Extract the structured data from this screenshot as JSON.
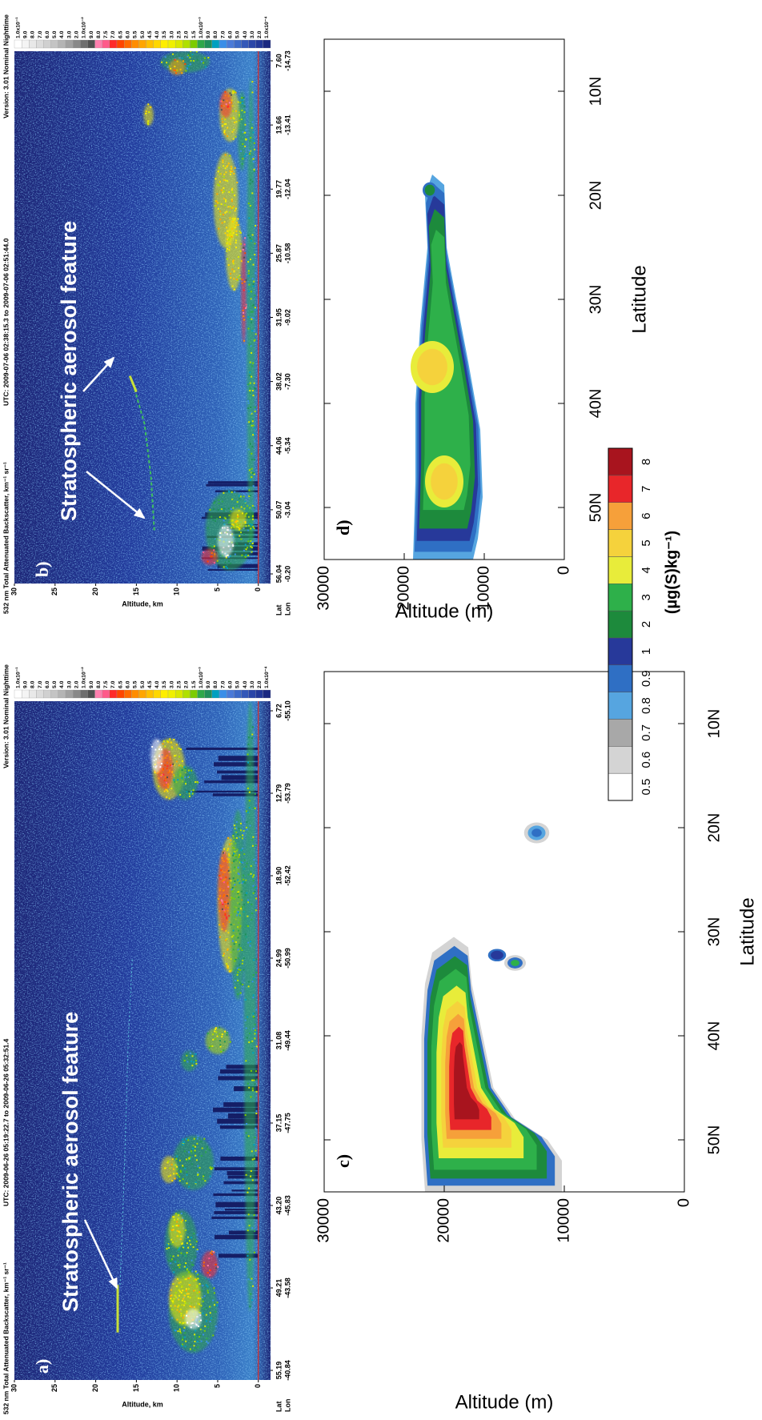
{
  "panels": [
    {
      "label": "a)",
      "header": "532 nm Total Attenuated Backscatter, km⁻¹ sr⁻¹",
      "utc": "UTC:  2009-06-26 05:19:22.7  to  2009-06-26 05:32:51.4",
      "version": "Version: 3.01  Nominal  Nighttime",
      "y_label": "Altitude, km",
      "ylim": [
        -1.5,
        30
      ],
      "yticks": [
        0,
        5,
        10,
        15,
        20,
        25,
        30
      ],
      "row_labels": [
        "Lat",
        "Lon"
      ],
      "lat": [
        "55.19",
        "49.21",
        "43.20",
        "37.15",
        "31.08",
        "24.99",
        "18.90",
        "12.79",
        "6.72"
      ],
      "lon": [
        "-40.84",
        "-43.58",
        "-45.83",
        "-47.75",
        "-49.44",
        "-50.99",
        "-52.42",
        "-53.79",
        "-55.10"
      ],
      "annotation": "Stratospheric aerosol feature"
    },
    {
      "label": "b)",
      "header": "532 nm Total Attenuated Backscatter, km⁻¹ sr⁻¹",
      "utc": "UTC:  2009-07-06 02:38:15.3  to  2009-07-06 02:51:44.0",
      "version": "Version: 3.01  Nominal  Nighttime",
      "y_label": "Altitude, km",
      "ylim": [
        -1.5,
        30
      ],
      "yticks": [
        0,
        5,
        10,
        15,
        20,
        25,
        30
      ],
      "row_labels": [
        "Lat",
        "Lon"
      ],
      "lat": [
        "56.04",
        "50.07",
        "44.06",
        "38.02",
        "31.95",
        "25.87",
        "19.77",
        "13.66",
        "7.60"
      ],
      "lon": [
        "-0.20",
        "-3.04",
        "-5.34",
        "-7.30",
        "-9.02",
        "-10.58",
        "-12.04",
        "-13.41",
        "-14.73"
      ],
      "annotation": "Stratospheric aerosol feature"
    },
    {
      "label": "c)",
      "y_label": "Altitude (m)",
      "x_label": "Latitude",
      "ylim": [
        0,
        30000
      ],
      "yticks": [
        0,
        10000,
        20000,
        30000
      ],
      "xlim": [
        55,
        5
      ],
      "xticks": [
        {
          "value": 50,
          "label": "50N"
        },
        {
          "value": 40,
          "label": "40N"
        },
        {
          "value": 30,
          "label": "30N"
        },
        {
          "value": 20,
          "label": "20N"
        },
        {
          "value": 10,
          "label": "10N"
        }
      ]
    },
    {
      "label": "d)",
      "y_label": "Altitude (m)",
      "x_label": "Latitude",
      "ylim": [
        0,
        30000
      ],
      "yticks": [
        0,
        10000,
        20000,
        30000
      ],
      "xlim": [
        55,
        5
      ],
      "xticks": [
        {
          "value": 50,
          "label": "50N"
        },
        {
          "value": 40,
          "label": "40N"
        },
        {
          "value": 30,
          "label": "30N"
        },
        {
          "value": 20,
          "label": "20N"
        },
        {
          "value": 10,
          "label": "10N"
        }
      ]
    }
  ],
  "lidar_colorbar": {
    "labels": [
      "1.0x10⁻¹",
      "9.0",
      "8.0",
      "7.0",
      "6.0",
      "5.0",
      "4.0",
      "3.0",
      "2.0",
      "1.0x10⁻²",
      "9.0",
      "8.0",
      "7.5",
      "7.0",
      "6.5",
      "6.0",
      "5.5",
      "5.0",
      "4.5",
      "4.0",
      "3.5",
      "3.0",
      "2.5",
      "2.0",
      "1.5",
      "1.0x10⁻³",
      "9.0",
      "8.0",
      "7.0",
      "6.0",
      "5.0",
      "4.0",
      "3.0",
      "2.0",
      "1.0x10⁻⁴"
    ],
    "colors": [
      "#ffffff",
      "#f4f4f4",
      "#e8e8e8",
      "#dcdcdc",
      "#d0d0d0",
      "#c4c4c4",
      "#b4b4b4",
      "#a0a0a0",
      "#888888",
      "#6e6e6e",
      "#505050",
      "#ff7fae",
      "#ff5a8a",
      "#ff2a2a",
      "#ff4500",
      "#ff6a00",
      "#ff8c00",
      "#ffa500",
      "#ffc000",
      "#ffd700",
      "#ffee00",
      "#f0f000",
      "#d8e800",
      "#b0e000",
      "#7ccc00",
      "#2ea84a",
      "#1f8f5a",
      "#00a0c0",
      "#3a8ee8",
      "#4a7ad8",
      "#3c6ac8",
      "#3458b8",
      "#2a46a8",
      "#223898",
      "#1a2880"
    ]
  },
  "mass_colorbar": {
    "labels": [
      "0.5",
      "0.6",
      "0.7",
      "0.8",
      "0.9",
      "1",
      "2",
      "3",
      "4",
      "5",
      "6",
      "7",
      "8"
    ],
    "colors": [
      "#ffffff",
      "#d4d4d4",
      "#a8a8a8",
      "#56a5e0",
      "#2f6fc4",
      "#27399a",
      "#1d8a3c",
      "#2eb04a",
      "#e8ec3a",
      "#f5d23c",
      "#f6a03a",
      "#e8262a",
      "#a8141e"
    ],
    "unit": "(µg(S)kg⁻¹)"
  }
}
